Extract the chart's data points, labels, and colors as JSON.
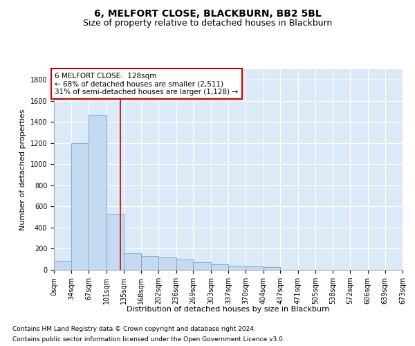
{
  "title": "6, MELFORT CLOSE, BLACKBURN, BB2 5BL",
  "subtitle": "Size of property relative to detached houses in Blackburn",
  "xlabel": "Distribution of detached houses by size in Blackburn",
  "ylabel": "Number of detached properties",
  "footnote1": "Contains HM Land Registry data © Crown copyright and database right 2024.",
  "footnote2": "Contains public sector information licensed under the Open Government Licence v3.0.",
  "annotation_line1": "6 MELFORT CLOSE:  128sqm",
  "annotation_line2": "← 68% of detached houses are smaller (2,511)",
  "annotation_line3": "31% of semi-detached houses are larger (1,128) →",
  "bar_edges": [
    0,
    34,
    67,
    101,
    135,
    168,
    202,
    236,
    269,
    303,
    337,
    370,
    404,
    437,
    471,
    505,
    538,
    572,
    606,
    639,
    673
  ],
  "bar_heights": [
    85,
    1200,
    1470,
    530,
    155,
    130,
    115,
    100,
    75,
    50,
    40,
    30,
    25,
    0,
    0,
    0,
    0,
    0,
    0,
    0
  ],
  "bar_color": "#c5d9f0",
  "bar_edge_color": "#7baed4",
  "vline_color": "#cc0000",
  "vline_x": 128,
  "annotation_box_color": "#cc0000",
  "plot_bg_color": "#dce9f7",
  "ylim": [
    0,
    1900
  ],
  "yticks": [
    0,
    200,
    400,
    600,
    800,
    1000,
    1200,
    1400,
    1600,
    1800
  ],
  "title_fontsize": 10,
  "subtitle_fontsize": 9,
  "axis_label_fontsize": 8,
  "tick_fontsize": 7,
  "annotation_fontsize": 7.5,
  "footnote_fontsize": 6.5
}
